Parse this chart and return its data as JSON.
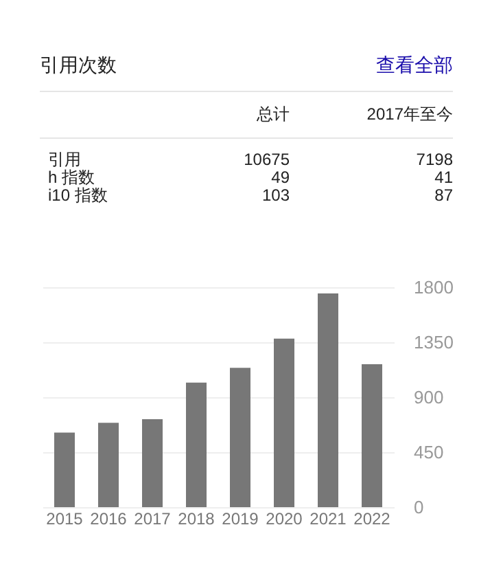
{
  "chart_data": [
    {
      "type": "other",
      "title": "引用次数",
      "annotations": [
        "查看全部",
        "总计",
        "2017年至今",
        "引用",
        "10675",
        "7198",
        "h 指数",
        "49",
        "41",
        "i10 指数",
        "103",
        "87"
      ]
    },
    {
      "type": "bar",
      "categories": [
        "2015",
        "2016",
        "2017",
        "2018",
        "2019",
        "2020",
        "2021",
        "2022"
      ],
      "values": [
        610,
        690,
        720,
        1020,
        1140,
        1380,
        1750,
        1170
      ],
      "color": "#777777",
      "ylim": [
        0,
        1800
      ],
      "yticks": [
        0,
        450,
        900,
        1350,
        1800
      ],
      "grid": "y"
    }
  ]
}
